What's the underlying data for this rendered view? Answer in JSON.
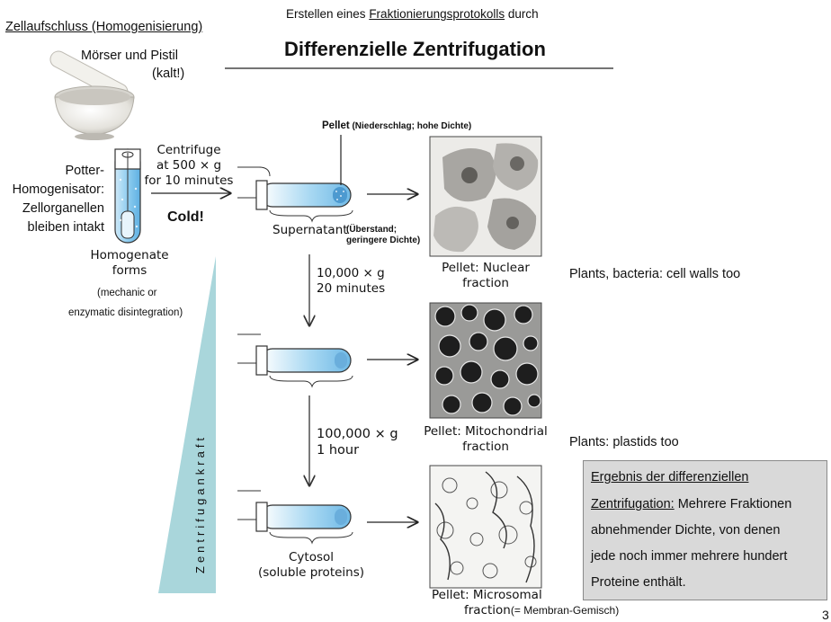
{
  "header": {
    "subtitle_prefix": "Erstellen eines ",
    "subtitle_link": "Fraktionierungsprotokolls",
    "subtitle_suffix": " durch",
    "title": "Differenzielle Zentrifugation"
  },
  "left": {
    "section_heading": "Zellaufschluss (Homogenisierung)",
    "mortar_label_1": "Mörser und Pistil",
    "mortar_label_2": "(kalt!)",
    "potter_1": "Potter-",
    "potter_2": "Homogenisator:",
    "potter_3": "Zellorganellen",
    "potter_4": "bleiben intakt",
    "cold": "Cold!",
    "homogenate_1": "Homogenate",
    "homogenate_2": "forms",
    "mechanic_1": "(mechanic or",
    "mechanic_2": "enzymatic disintegration)",
    "force_label": "Zentrifugankraft"
  },
  "steps": {
    "centrifuge_1": "Centrifuge",
    "centrifuge_2": "at 500 × g",
    "centrifuge_3": "for 10 minutes",
    "pellet_note_bold": "Pellet",
    "pellet_note_rest": " (Niederschlag; hohe Dichte)",
    "supernatant": "Supernatant",
    "supernatant_note_1": "(Überstand;",
    "supernatant_note_2": "geringere Dichte)",
    "step2_1": "10,000 × g",
    "step2_2": "20 minutes",
    "step3_1": "100,000 × g",
    "step3_2": "1 hour",
    "cytosol_1": "Cytosol",
    "cytosol_2": "(soluble proteins)"
  },
  "pellets": {
    "nuclear_1": "Pellet: Nuclear",
    "nuclear_2": "fraction",
    "mito_1": "Pellet: Mitochondrial",
    "mito_2": "fraction",
    "micro_1": "Pellet: Microsomal",
    "micro_2": "fraction",
    "micro_note": "(= Membran-Gemisch)"
  },
  "notes": {
    "plants_bacteria": "Plants, bacteria: cell walls too",
    "plants_plastids": "Plants: plastids too"
  },
  "result": {
    "line1": "Ergebnis der differenziellen",
    "line2_underlined": "Zentrifugation:",
    "line2_rest": " Mehrere Fraktionen",
    "line3": "abnehmender Dichte, von denen",
    "line4": "jede noch immer mehrere hundert",
    "line5": "Proteine enthält."
  },
  "page_number": "3",
  "colors": {
    "tube_blue": "#7fc4ea",
    "force_triangle": "#a9d6db",
    "result_bg": "#d9d9d9"
  }
}
